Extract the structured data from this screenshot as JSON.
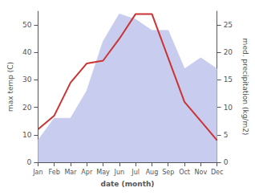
{
  "chart_data": {
    "type": "line",
    "xlabel": "date (month)",
    "ylabel": "max temp (C)",
    "y2label": "med. precipitation (kg/m2)",
    "categories": [
      "Jan",
      "Feb",
      "Mar",
      "Apr",
      "May",
      "Jun",
      "Jul",
      "Aug",
      "Sep",
      "Oct",
      "Nov",
      "Dec"
    ],
    "series": [
      {
        "type": "area",
        "color": "#c8cdf0",
        "axis": "y2",
        "values": [
          4,
          8,
          8,
          13,
          22,
          27,
          26,
          24,
          24,
          17,
          19,
          17
        ]
      },
      {
        "type": "line",
        "color": "#cc3333",
        "values": [
          12,
          17,
          29,
          36,
          37,
          45,
          54,
          54,
          38,
          22,
          15,
          8
        ]
      }
    ],
    "ylim": [
      0,
      55
    ],
    "yticks": [
      0,
      10,
      20,
      30,
      40,
      50
    ],
    "y2lim": [
      0,
      27.5
    ],
    "y2ticks": [
      0,
      5,
      10,
      15,
      20,
      25
    ],
    "grid": false
  }
}
